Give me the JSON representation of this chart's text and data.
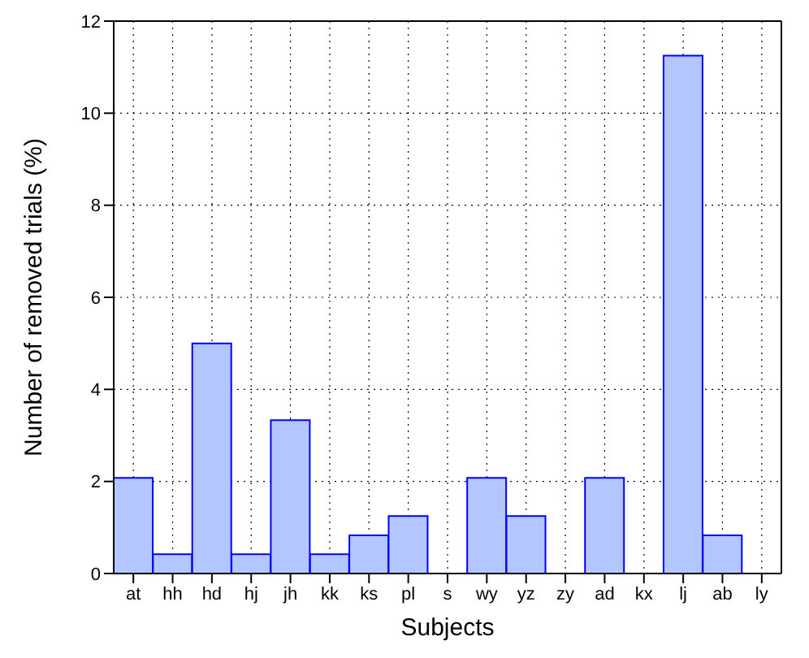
{
  "chart_data": {
    "type": "bar",
    "xlabel": "Subjects",
    "ylabel": "Number of removed trials (%)",
    "categories": [
      "at",
      "hh",
      "hd",
      "hj",
      "jh",
      "kk",
      "ks",
      "pl",
      "s",
      "wy",
      "yz",
      "zy",
      "ad",
      "kx",
      "lj",
      "ab",
      "ly"
    ],
    "values": [
      2.08,
      0.42,
      5.0,
      0.42,
      3.33,
      0.42,
      0.83,
      1.25,
      0,
      2.08,
      1.25,
      0,
      2.08,
      0,
      11.25,
      0.83,
      0
    ],
    "color": "#b3c6ff",
    "ylim": [
      0,
      12
    ],
    "yticks": [
      0,
      2,
      4,
      6,
      8,
      10,
      12
    ],
    "grid": true
  }
}
